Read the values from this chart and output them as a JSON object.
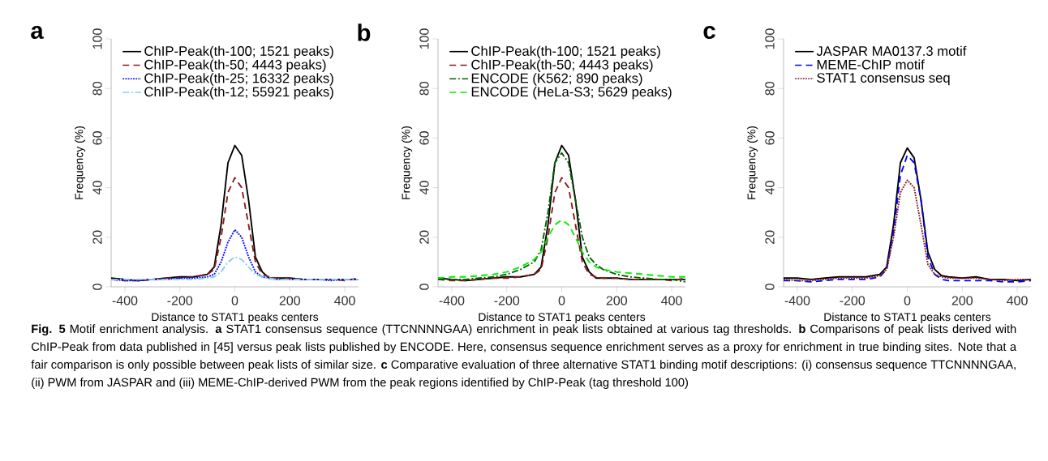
{
  "chart_data": [
    {
      "type": "line",
      "title": "a",
      "xlabel": "Distance to STAT1 peaks centers",
      "ylabel": "Frequency (%)",
      "x": [
        -450,
        -400,
        -350,
        -300,
        -250,
        -200,
        -150,
        -100,
        -75,
        -50,
        -25,
        0,
        25,
        50,
        75,
        100,
        125,
        150,
        200,
        250,
        300,
        350,
        400,
        450
      ],
      "xlim": [
        -450,
        450
      ],
      "ylim": [
        0,
        100
      ],
      "xticks": [
        -400,
        -200,
        0,
        200,
        400
      ],
      "yticks": [
        0,
        20,
        40,
        60,
        80,
        100
      ],
      "legend": "top left",
      "series": [
        {
          "name": "ChIP-Peak(th-100; 1521 peaks)",
          "color": "#000000",
          "line_style": "solid",
          "values": [
            3.5,
            3,
            2.5,
            3,
            3.5,
            4,
            4,
            5,
            8,
            25,
            50,
            57,
            53,
            35,
            12,
            6,
            3.5,
            3.5,
            3.5,
            3,
            3,
            3,
            3,
            3
          ]
        },
        {
          "name": "ChIP-Peak(th-50; 4443 peaks)",
          "color": "#8b1a1a",
          "line_style": "dashed",
          "values": [
            3,
            2.5,
            2.5,
            3,
            3.5,
            3.5,
            4,
            5,
            7,
            20,
            38,
            44,
            40,
            25,
            10,
            5,
            4,
            3.5,
            3.5,
            3,
            3,
            3,
            2.5,
            3.5
          ]
        },
        {
          "name": "ChIP-Peak(th-25; 16332 peaks)",
          "color": "#0000ff",
          "line_style": "dotted",
          "values": [
            3,
            2.5,
            2.5,
            3,
            3,
            3.5,
            3.5,
            4,
            5,
            10,
            18,
            23,
            20,
            12,
            6,
            4,
            3.5,
            3,
            3,
            3,
            3,
            2.5,
            3,
            3
          ]
        },
        {
          "name": "ChIP-Peak(th-12; 55921 peaks)",
          "color": "#87ceeb",
          "line_style": "dashdot",
          "values": [
            3,
            3,
            3,
            3,
            3,
            3,
            3,
            3.5,
            4,
            6,
            10,
            12,
            11,
            8,
            5,
            4,
            3.5,
            3,
            3,
            3,
            3,
            3,
            3,
            3
          ]
        }
      ]
    },
    {
      "type": "line",
      "title": "b",
      "xlabel": "Distance to STAT1 peaks centers",
      "ylabel": "Frequency (%)",
      "x": [
        -450,
        -400,
        -350,
        -300,
        -250,
        -200,
        -150,
        -100,
        -75,
        -50,
        -25,
        0,
        25,
        50,
        75,
        100,
        125,
        150,
        200,
        250,
        300,
        350,
        400,
        450
      ],
      "xlim": [
        -450,
        450
      ],
      "ylim": [
        0,
        100
      ],
      "xticks": [
        -400,
        -200,
        0,
        200,
        400
      ],
      "yticks": [
        0,
        20,
        40,
        60,
        80,
        100
      ],
      "legend": "top left",
      "series": [
        {
          "name": "ChIP-Peak(th-100; 1521 peaks)",
          "color": "#000000",
          "line_style": "solid",
          "values": [
            3.5,
            3,
            2.5,
            3,
            3.5,
            4,
            4,
            5,
            8,
            25,
            50,
            57,
            53,
            35,
            12,
            6,
            3.5,
            3.5,
            3.5,
            3,
            3,
            3,
            3,
            3
          ]
        },
        {
          "name": "ChIP-Peak(th-50; 4443 peaks)",
          "color": "#8b1a1a",
          "line_style": "dashed",
          "values": [
            3,
            2.5,
            2.5,
            3,
            3.5,
            3.5,
            4,
            5,
            7,
            20,
            38,
            44,
            40,
            25,
            10,
            5,
            4,
            3.5,
            3.5,
            3,
            3,
            3,
            2.5,
            3.5
          ]
        },
        {
          "name": "ENCODE (K562; 890 peaks)",
          "color": "#006400",
          "line_style": "dashdot",
          "values": [
            3,
            3,
            3,
            3.5,
            4,
            5,
            7,
            10,
            15,
            30,
            50,
            54,
            50,
            35,
            20,
            12,
            9,
            7,
            5,
            4,
            3.5,
            3,
            3,
            2
          ]
        },
        {
          "name": "ENCODE (HeLa-S3; 5629 peaks)",
          "color": "#00ee00",
          "line_style": "dashed",
          "values": [
            3.5,
            4,
            4,
            4.5,
            5,
            6,
            8,
            11,
            14,
            20,
            25,
            27,
            25,
            20,
            14,
            10,
            8,
            7,
            6,
            5.5,
            5,
            4.5,
            4,
            4
          ]
        }
      ]
    },
    {
      "type": "line",
      "title": "c",
      "xlabel": "Distance to STAT1 peaks centers",
      "ylabel": "Frequency (%)",
      "x": [
        -450,
        -400,
        -350,
        -300,
        -250,
        -200,
        -150,
        -100,
        -75,
        -50,
        -25,
        0,
        25,
        50,
        75,
        100,
        125,
        150,
        200,
        250,
        300,
        350,
        400,
        450
      ],
      "xlim": [
        -450,
        450
      ],
      "ylim": [
        0,
        100
      ],
      "xticks": [
        -400,
        -200,
        0,
        200,
        400
      ],
      "yticks": [
        0,
        20,
        40,
        60,
        80,
        100
      ],
      "legend": "top left",
      "series": [
        {
          "name": "JASPAR MA0137.3 motif",
          "color": "#000000",
          "line_style": "solid",
          "values": [
            3.5,
            3.5,
            3,
            3.5,
            4,
            4,
            4,
            5,
            8,
            25,
            50,
            56,
            52,
            35,
            14,
            7,
            4.5,
            4,
            3.5,
            4,
            3,
            3,
            2.5,
            3
          ]
        },
        {
          "name": "MEME-ChIP motif",
          "color": "#0000ff",
          "line_style": "dashed",
          "values": [
            2.5,
            2.5,
            2,
            2.5,
            3,
            3,
            3,
            4,
            7,
            22,
            45,
            53,
            50,
            35,
            12,
            5,
            3,
            2.5,
            2.5,
            2.5,
            2.5,
            2,
            2,
            2.5
          ]
        },
        {
          "name": "STAT1 consensus seq",
          "color": "#8b1a1a",
          "line_style": "dotted",
          "values": [
            3,
            2.5,
            2.5,
            3,
            3.5,
            3.5,
            3.5,
            4.5,
            7,
            20,
            38,
            43,
            40,
            25,
            9,
            5,
            4,
            3.5,
            3.5,
            3.5,
            3,
            2.5,
            3,
            3
          ]
        }
      ],
      "annotations": [
        "**Fig. 5** Motif enrichment analysis. **a** STAT1 consensus sequence (TTCNNNNGAA) enrichment in peak lists obtained at various tag thresholds. **b** Comparisons of peak lists derived with ChIP-Peak from data published in [45] versus peak lists published by ENCODE. Here, consensus sequence enrichment serves as a proxy for enrichment in true binding sites. Note that a fair comparison is only possible between peak lists of similar size. **c** Comparative evaluation of three alternative STAT1 binding motif descriptions: (i) consensus sequence TTCNNNNGAA, (ii) PWM from JASPAR and (iii) MEME-ChIP-derived PWM from the peak regions identified by ChIP-Peak (tag threshold 100)"
      ]
    }
  ]
}
